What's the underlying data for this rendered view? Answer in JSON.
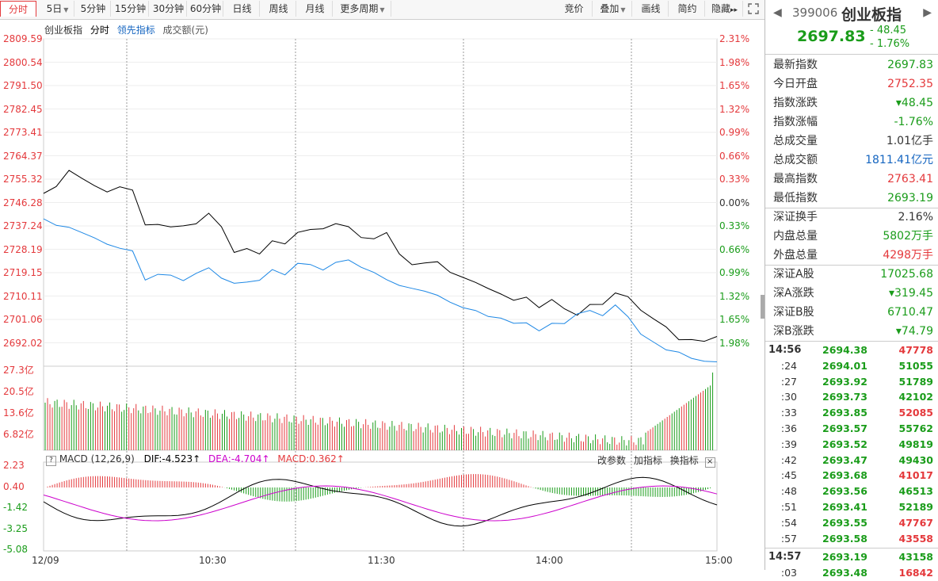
{
  "toolbar": {
    "tabs": [
      {
        "label": "分时",
        "active": true
      },
      {
        "label": "5日",
        "dropdown": true
      },
      {
        "label": "5分钟"
      },
      {
        "label": "15分钟"
      },
      {
        "label": "30分钟"
      },
      {
        "label": "60分钟"
      },
      {
        "label": "日线"
      },
      {
        "label": "周线"
      },
      {
        "label": "月线"
      },
      {
        "label": "更多周期",
        "dropdown": true
      }
    ],
    "right": [
      {
        "label": "竞价"
      },
      {
        "label": "叠加",
        "dropdown": true
      },
      {
        "label": "画线"
      },
      {
        "label": "简约"
      },
      {
        "label": "隐藏",
        "suffix": "▸▸"
      }
    ]
  },
  "legend": {
    "name": "创业板指",
    "mode": "分时",
    "lead": "领先指标",
    "volume": "成交额(元)"
  },
  "price_axis": {
    "left": [
      "2809.59",
      "2800.54",
      "2791.50",
      "2782.45",
      "2773.41",
      "2764.37",
      "2755.32",
      "2746.28",
      "2737.24",
      "2728.19",
      "2719.15",
      "2710.11",
      "2701.06",
      "2692.02"
    ],
    "right": [
      "2.31%",
      "1.98%",
      "1.65%",
      "1.32%",
      "0.99%",
      "0.66%",
      "0.33%",
      "0.00%",
      "0.33%",
      "0.66%",
      "0.99%",
      "1.32%",
      "1.65%",
      "1.98%"
    ]
  },
  "volume_axis": [
    "27.3亿",
    "20.5亿",
    "13.6亿",
    "6.82亿"
  ],
  "macd": {
    "header": "MACD (12,26,9)",
    "dif": "DIF:-4.523↑",
    "dea": "DEA:-4.704↑",
    "macd": "MACD:0.362↑",
    "ticks": [
      "2.23",
      "0.40",
      "-1.42",
      "-3.25",
      "-5.08"
    ],
    "actions": [
      "改参数",
      "加指标",
      "换指标"
    ]
  },
  "time_axis": [
    "12/09",
    "10:30",
    "11:30",
    "14:00",
    "15:00"
  ],
  "chart_data": {
    "type": "line",
    "price_ylim": [
      2692.02,
      2809.59
    ],
    "prev_close": 2746.28,
    "series": [
      {
        "name": "创业板指",
        "values": [
          2752,
          2755,
          2760,
          2758,
          2755,
          2752,
          2755,
          2753,
          2740,
          2741,
          2739,
          2740,
          2741,
          2744,
          2740,
          2730,
          2731,
          2730,
          2734,
          2733,
          2738,
          2738,
          2739,
          2741,
          2739,
          2736,
          2735,
          2737,
          2730,
          2725,
          2726,
          2727,
          2722,
          2721,
          2719,
          2716,
          2715,
          2712,
          2713,
          2710,
          2712,
          2709,
          2707,
          2710,
          2711,
          2715,
          2713,
          2709,
          2705,
          2702,
          2698,
          2697,
          2697,
          2699
        ]
      },
      {
        "name": "领先指标",
        "values": [
          2743,
          2740,
          2739,
          2738,
          2735,
          2733,
          2732,
          2730,
          2720,
          2722,
          2721,
          2720,
          2722,
          2724,
          2721,
          2718,
          2719,
          2720,
          2723,
          2722,
          2726,
          2725,
          2724,
          2726,
          2727,
          2725,
          2722,
          2720,
          2718,
          2716,
          2716,
          2714,
          2711,
          2710,
          2708,
          2706,
          2706,
          2703,
          2704,
          2701,
          2703,
          2704,
          2707,
          2708,
          2707,
          2710,
          2706,
          2700,
          2696,
          2694,
          2693,
          2690,
          2690,
          2689
        ]
      }
    ]
  },
  "panel": {
    "code": "399006",
    "name": "创业板指",
    "price": "2697.83",
    "change": "- 48.45",
    "pct": "- 1.76%",
    "stats": [
      {
        "k": "最新指数",
        "v": "2697.83",
        "c": "grn"
      },
      {
        "k": "今日开盘",
        "v": "2752.35",
        "c": "red"
      },
      {
        "k": "指数涨跌",
        "v": "▾48.45",
        "c": "grn"
      },
      {
        "k": "指数涨幅",
        "v": "-1.76%",
        "c": "grn"
      },
      {
        "k": "总成交量",
        "v": "1.01亿手",
        "c": ""
      },
      {
        "k": "总成交额",
        "v": "1811.41亿元",
        "c": "blu"
      },
      {
        "k": "最高指数",
        "v": "2763.41",
        "c": "red"
      },
      {
        "k": "最低指数",
        "v": "2693.19",
        "c": "grn"
      },
      {
        "k": "深证换手",
        "v": "2.16%",
        "c": ""
      },
      {
        "k": "内盘总量",
        "v": "5802万手",
        "c": "grn"
      },
      {
        "k": "外盘总量",
        "v": "4298万手",
        "c": "red"
      },
      {
        "k": "深证A股",
        "v": "17025.68",
        "c": "grn"
      },
      {
        "k": "深A涨跌",
        "v": "▾319.45",
        "c": "grn"
      },
      {
        "k": "深证B股",
        "v": "6710.47",
        "c": "grn"
      },
      {
        "k": "深B涨跌",
        "v": "▾74.79",
        "c": "grn"
      }
    ],
    "ticks": [
      {
        "t": "14:56",
        "p": "2694.38",
        "q": "47778",
        "c": "red"
      },
      {
        "t": ":24",
        "p": "2694.01",
        "q": "51055",
        "c": "grn"
      },
      {
        "t": ":27",
        "p": "2693.92",
        "q": "51789",
        "c": "grn"
      },
      {
        "t": ":30",
        "p": "2693.73",
        "q": "42102",
        "c": "grn"
      },
      {
        "t": ":33",
        "p": "2693.85",
        "q": "52085",
        "c": "red"
      },
      {
        "t": ":36",
        "p": "2693.57",
        "q": "55762",
        "c": "grn"
      },
      {
        "t": ":39",
        "p": "2693.52",
        "q": "49819",
        "c": "grn"
      },
      {
        "t": ":42",
        "p": "2693.47",
        "q": "49430",
        "c": "grn"
      },
      {
        "t": ":45",
        "p": "2693.68",
        "q": "41017",
        "c": "red"
      },
      {
        "t": ":48",
        "p": "2693.56",
        "q": "46513",
        "c": "grn"
      },
      {
        "t": ":51",
        "p": "2693.41",
        "q": "52189",
        "c": "grn"
      },
      {
        "t": ":54",
        "p": "2693.55",
        "q": "47767",
        "c": "red"
      },
      {
        "t": ":57",
        "p": "2693.58",
        "q": "43558",
        "c": "red"
      },
      {
        "t": "14:57",
        "p": "2693.19",
        "q": "43158",
        "c": "grn"
      },
      {
        "t": ":03",
        "p": "2693.48",
        "q": "16842",
        "c": "red"
      }
    ]
  }
}
